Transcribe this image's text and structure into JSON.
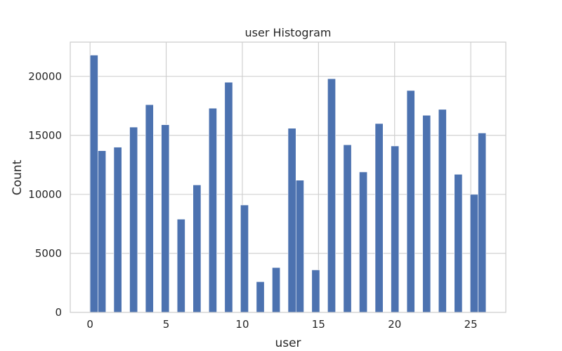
{
  "chart_data": {
    "type": "bar",
    "title": "user Histogram",
    "xlabel": "user",
    "ylabel": "Count",
    "xlim": [
      -1.3,
      27.3
    ],
    "ylim": [
      0,
      22900
    ],
    "xticks": [
      0,
      5,
      10,
      15,
      20,
      25
    ],
    "yticks": [
      0,
      5000,
      10000,
      15000,
      20000
    ],
    "grid": true,
    "bar_color": "#4c72b0",
    "bins": [
      {
        "x0": 0.0,
        "x1": 0.52,
        "count": 21800
      },
      {
        "x0": 0.52,
        "x1": 1.04,
        "count": 13700
      },
      {
        "x0": 1.56,
        "x1": 2.08,
        "count": 14000
      },
      {
        "x0": 2.6,
        "x1": 3.12,
        "count": 15700
      },
      {
        "x0": 3.64,
        "x1": 4.16,
        "count": 17600
      },
      {
        "x0": 4.68,
        "x1": 5.2,
        "count": 15900
      },
      {
        "x0": 5.72,
        "x1": 6.24,
        "count": 7900
      },
      {
        "x0": 6.76,
        "x1": 7.28,
        "count": 10800
      },
      {
        "x0": 7.8,
        "x1": 8.32,
        "count": 17300
      },
      {
        "x0": 8.84,
        "x1": 9.36,
        "count": 19500
      },
      {
        "x0": 9.88,
        "x1": 10.4,
        "count": 9100
      },
      {
        "x0": 10.92,
        "x1": 11.44,
        "count": 2600
      },
      {
        "x0": 11.96,
        "x1": 12.48,
        "count": 3800
      },
      {
        "x0": 13.0,
        "x1": 13.52,
        "count": 15600
      },
      {
        "x0": 13.52,
        "x1": 14.04,
        "count": 11200
      },
      {
        "x0": 14.56,
        "x1": 15.08,
        "count": 3600
      },
      {
        "x0": 15.6,
        "x1": 16.12,
        "count": 19800
      },
      {
        "x0": 16.64,
        "x1": 17.16,
        "count": 14200
      },
      {
        "x0": 17.68,
        "x1": 18.2,
        "count": 11900
      },
      {
        "x0": 18.72,
        "x1": 19.24,
        "count": 16000
      },
      {
        "x0": 19.76,
        "x1": 20.28,
        "count": 14100
      },
      {
        "x0": 20.8,
        "x1": 21.32,
        "count": 18800
      },
      {
        "x0": 21.84,
        "x1": 22.36,
        "count": 16700
      },
      {
        "x0": 22.88,
        "x1": 23.4,
        "count": 17200
      },
      {
        "x0": 23.92,
        "x1": 24.44,
        "count": 11700
      },
      {
        "x0": 24.96,
        "x1": 25.48,
        "count": 10000
      },
      {
        "x0": 25.48,
        "x1": 26.0,
        "count": 15200
      }
    ]
  }
}
